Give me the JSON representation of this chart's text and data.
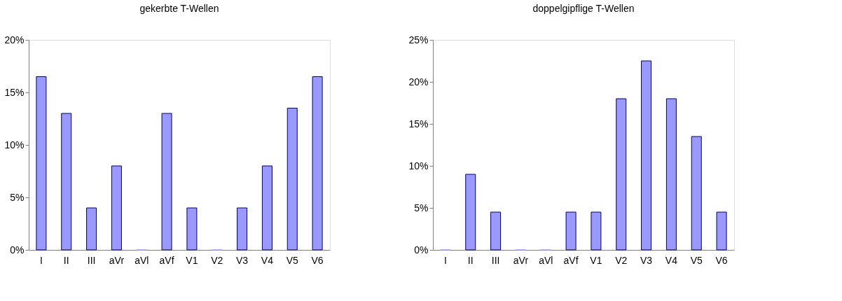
{
  "chart_data": [
    {
      "type": "bar",
      "title": "gekerbte T-Wellen",
      "categories": [
        "I",
        "II",
        "III",
        "aVr",
        "aVl",
        "aVf",
        "V1",
        "V2",
        "V3",
        "V4",
        "V5",
        "V6"
      ],
      "values": [
        16.5,
        13,
        4,
        8,
        0,
        13,
        4,
        0,
        4,
        8,
        13.5,
        16.5
      ],
      "color": "#9999ff",
      "ylim": [
        0,
        20
      ],
      "yticks": [
        {
          "value": 0,
          "label": "0%"
        },
        {
          "value": 5,
          "label": "5%"
        },
        {
          "value": 10,
          "label": "10%"
        },
        {
          "value": 15,
          "label": "15%"
        },
        {
          "value": 20,
          "label": "20%"
        }
      ],
      "grid": false
    },
    {
      "type": "bar",
      "title": "doppelgipflige T-Wellen",
      "categories": [
        "I",
        "II",
        "III",
        "aVr",
        "aVl",
        "aVf",
        "V1",
        "V2",
        "V3",
        "V4",
        "V5",
        "V6"
      ],
      "values": [
        0,
        9,
        4.5,
        0,
        0,
        4.5,
        4.5,
        18,
        22.5,
        18,
        13.5,
        4.5
      ],
      "color": "#9999ff",
      "ylim": [
        0,
        25
      ],
      "yticks": [
        {
          "value": 0,
          "label": "0%"
        },
        {
          "value": 5,
          "label": "5%"
        },
        {
          "value": 10,
          "label": "10%"
        },
        {
          "value": 15,
          "label": "15%"
        },
        {
          "value": 20,
          "label": "20%"
        },
        {
          "value": 25,
          "label": "25%"
        }
      ],
      "grid": false
    }
  ]
}
